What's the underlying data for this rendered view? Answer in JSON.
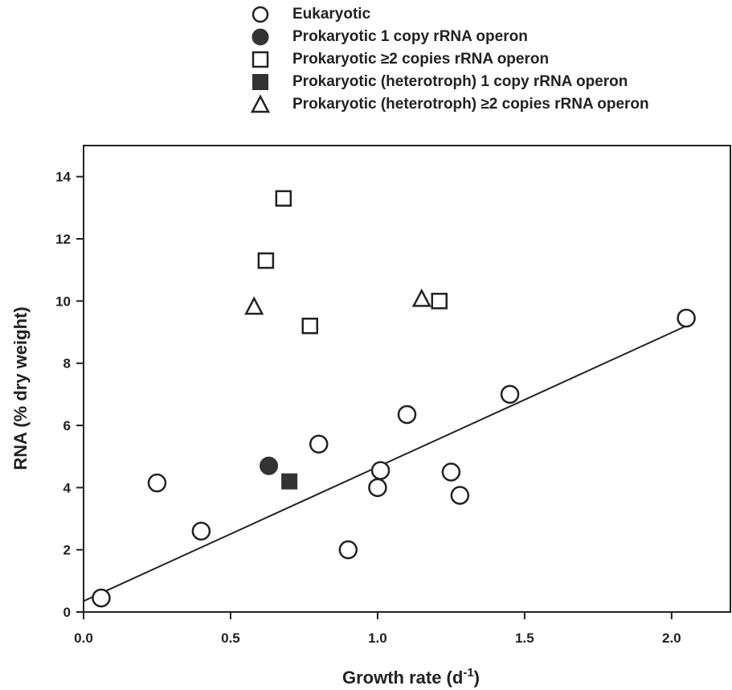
{
  "chart_data": {
    "type": "scatter",
    "xlabel": "Growth rate (d",
    "xlabel_sup": "-1",
    "xlabel_close": ")",
    "ylabel": "RNA (% dry weight)",
    "xlim": [
      0.0,
      2.2
    ],
    "ylim": [
      0,
      15
    ],
    "xticks": [
      "0.0",
      "0.5",
      "1.0",
      "1.5",
      "2.0"
    ],
    "xtick_values": [
      0.0,
      0.5,
      1.0,
      1.5,
      2.0
    ],
    "yticks": [
      "0",
      "2",
      "4",
      "6",
      "8",
      "10",
      "12",
      "14"
    ],
    "ytick_values": [
      0,
      2,
      4,
      6,
      8,
      10,
      12,
      14
    ],
    "grid": false,
    "legend_position": "top, above plot",
    "series": [
      {
        "name": "Eukaryotic",
        "marker": "circle-open",
        "points": [
          {
            "x": 0.06,
            "y": 0.45
          },
          {
            "x": 0.25,
            "y": 4.15
          },
          {
            "x": 0.4,
            "y": 2.6
          },
          {
            "x": 0.8,
            "y": 5.4
          },
          {
            "x": 0.9,
            "y": 2.0
          },
          {
            "x": 1.0,
            "y": 4.0
          },
          {
            "x": 1.01,
            "y": 4.55
          },
          {
            "x": 1.1,
            "y": 6.35
          },
          {
            "x": 1.25,
            "y": 4.5
          },
          {
            "x": 1.28,
            "y": 3.75
          },
          {
            "x": 1.45,
            "y": 7.0
          },
          {
            "x": 2.05,
            "y": 9.45
          }
        ]
      },
      {
        "name": "Prokaryotic 1 copy rRNA operon",
        "marker": "circle-filled",
        "points": [
          {
            "x": 0.63,
            "y": 4.7
          }
        ]
      },
      {
        "name": "Prokaryotic ≥2 copies rRNA operon",
        "marker": "square-open",
        "points": [
          {
            "x": 0.62,
            "y": 11.3
          },
          {
            "x": 0.68,
            "y": 13.3
          },
          {
            "x": 0.77,
            "y": 9.2
          },
          {
            "x": 1.21,
            "y": 10.0
          }
        ]
      },
      {
        "name": "Prokaryotic (heterotroph) 1 copy rRNA operon",
        "marker": "square-filled",
        "points": [
          {
            "x": 0.7,
            "y": 4.2
          }
        ]
      },
      {
        "name": "Prokaryotic (heterotroph) ≥2 copies rRNA operon",
        "marker": "triangle-open",
        "points": [
          {
            "x": 0.58,
            "y": 9.8
          },
          {
            "x": 1.15,
            "y": 10.05
          }
        ]
      }
    ],
    "regression_line": {
      "x": [
        0.0,
        2.05
      ],
      "y": [
        0.35,
        9.2
      ]
    }
  },
  "colors": {
    "ink": "#222222",
    "fill": "#333333",
    "background": "#ffffff"
  }
}
